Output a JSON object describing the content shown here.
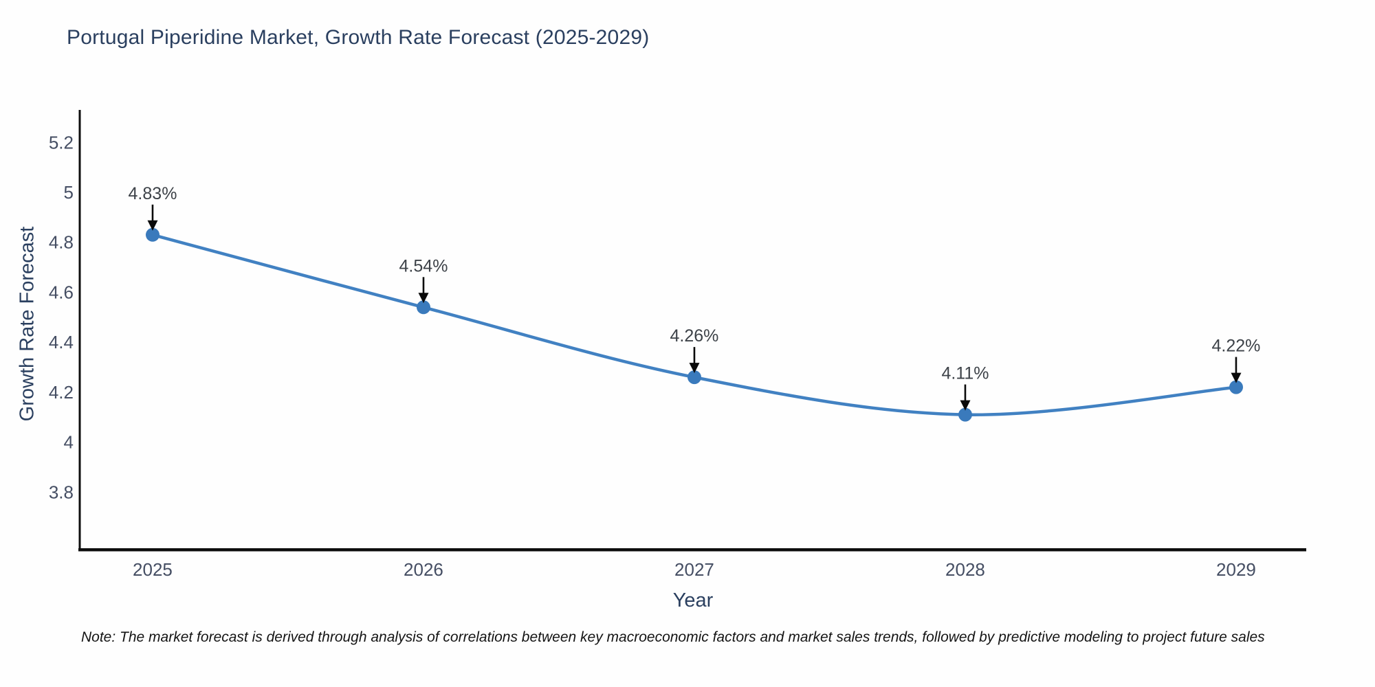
{
  "note_text": "Note: The market forecast is derived through analysis of correlations between key macroeconomic factors and market sales trends, followed by predictive modeling to project future sales",
  "chart_data": {
    "type": "line",
    "title": "Portugal Piperidine Market, Growth Rate Forecast (2025-2029)",
    "xlabel": "Year",
    "ylabel": "Growth Rate Forecast",
    "x": [
      2025,
      2026,
      2027,
      2028,
      2029
    ],
    "x_labels": [
      "2025",
      "2026",
      "2027",
      "2028",
      "2029"
    ],
    "values": [
      4.83,
      4.54,
      4.26,
      4.11,
      4.22
    ],
    "point_labels": [
      "4.83%",
      "4.54%",
      "4.26%",
      "4.11%",
      "4.22%"
    ],
    "yticks": [
      3.8,
      4.0,
      4.2,
      4.4,
      4.6,
      4.8,
      5.0,
      5.2
    ],
    "ytick_labels": [
      "3.8",
      "4",
      "4.2",
      "4.4",
      "4.6",
      "4.8",
      "5",
      "5.2"
    ],
    "xlim": [
      2024.731,
      2029.259
    ],
    "ylim": [
      3.57,
      5.33
    ],
    "grid": false,
    "legend": "none",
    "line_shape": "spline",
    "colors": {
      "line": "#4181c2",
      "marker": "#3a7abc",
      "axis": "#0d0d0d",
      "tick_label": "#454e63",
      "annotation_text": "#3d4248",
      "annotation_arrow": "#0a0a0a",
      "title_text": "#2a3f5f"
    }
  }
}
